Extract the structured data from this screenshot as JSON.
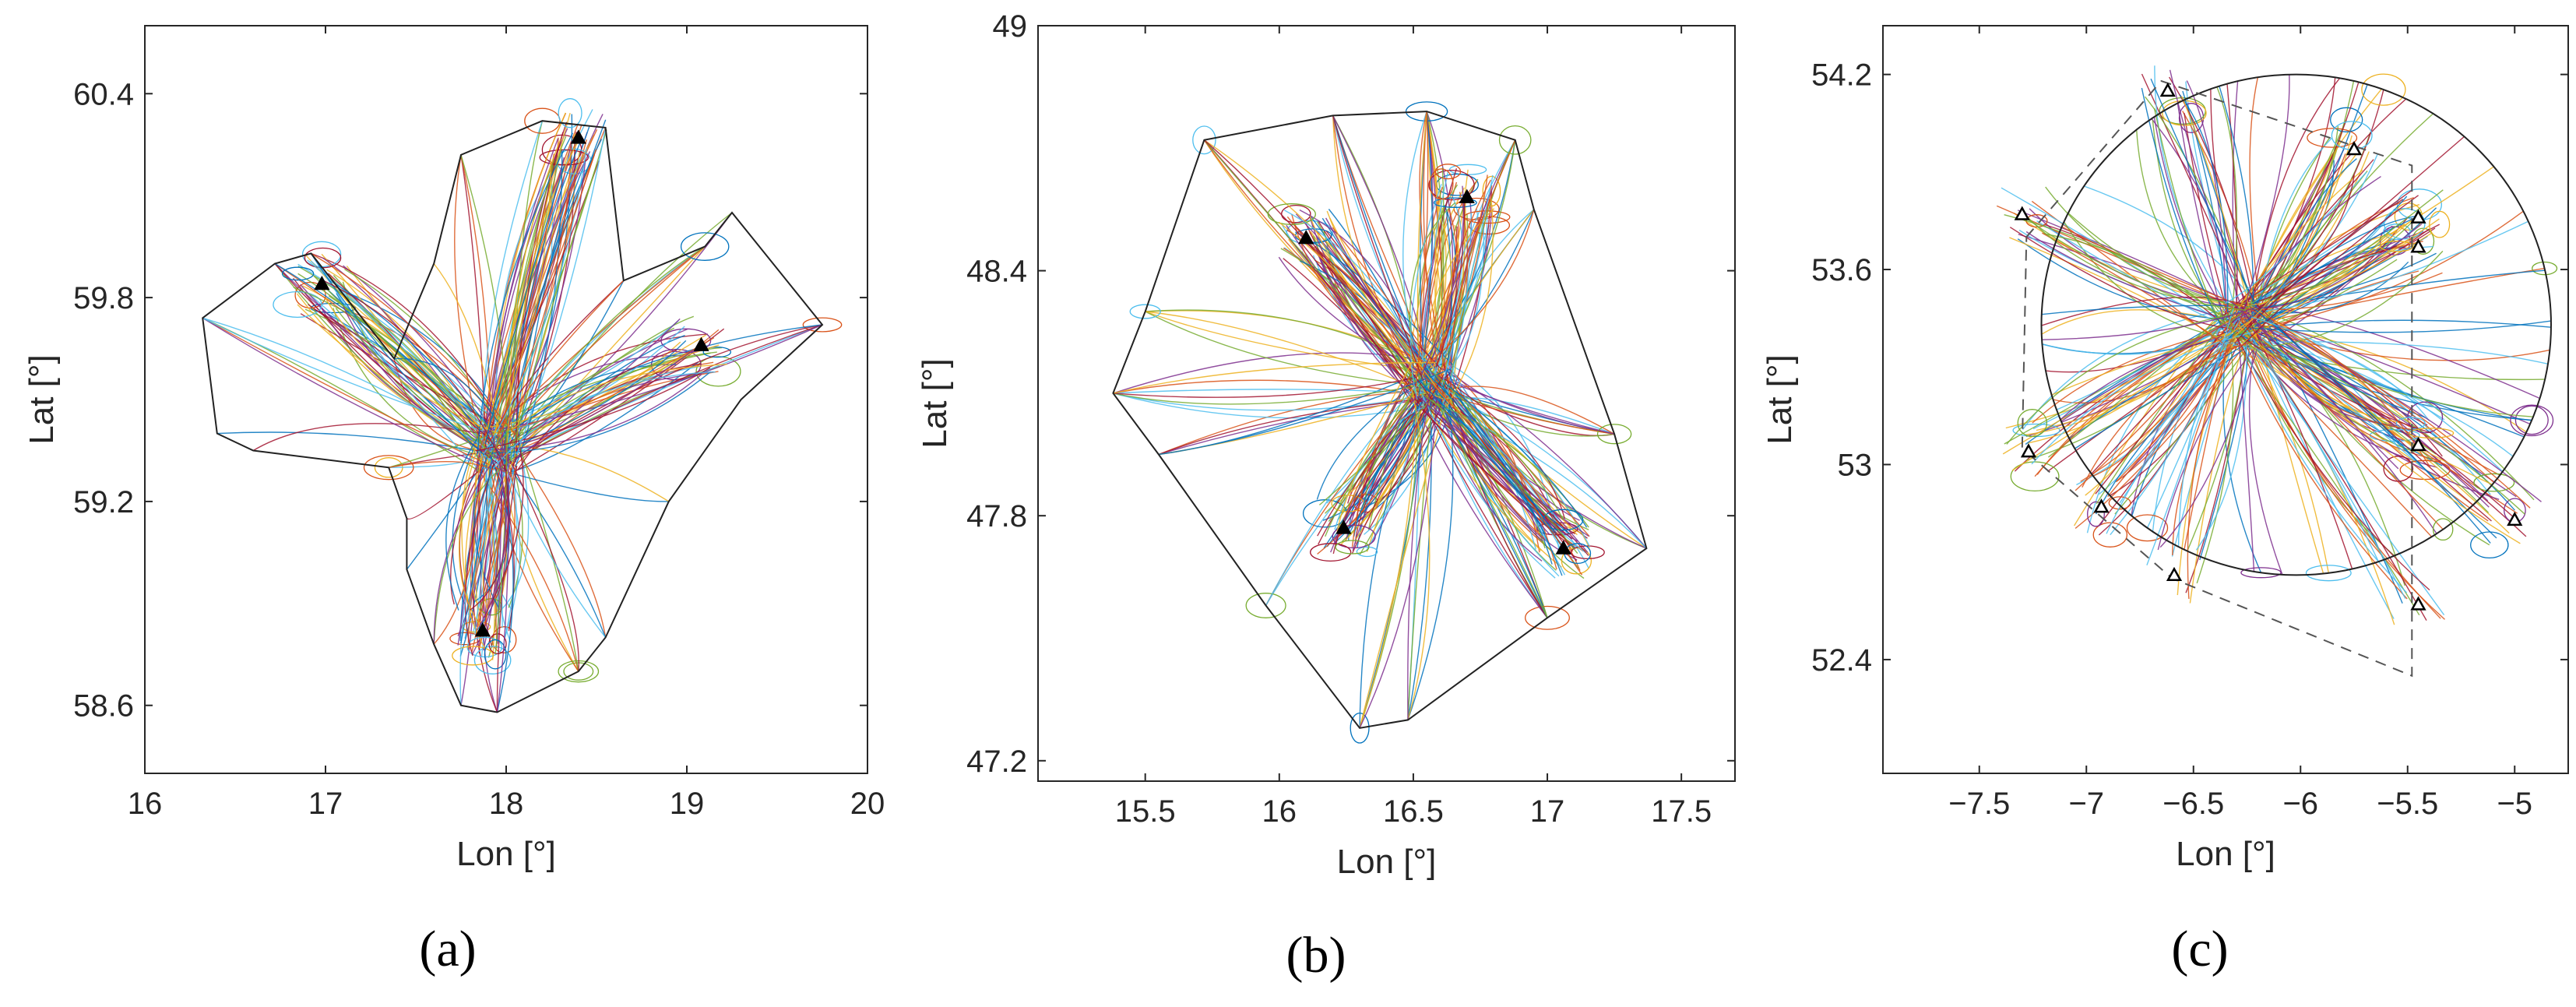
{
  "figure": {
    "description_label": "Aircraft trajectory plots for three terminal areas",
    "trajectory_colors": [
      "#0072BD",
      "#D95319",
      "#EDB120",
      "#7E2F8E",
      "#77AC30",
      "#4DBEEE",
      "#A2142F"
    ],
    "boundary_color": "#222222",
    "marker_color": "#000000"
  },
  "chart_data": [
    {
      "type": "line",
      "title": "",
      "caption": "(a)",
      "xlabel": "Lon [°]",
      "ylabel": "Lat [°]",
      "xlim": [
        16,
        20
      ],
      "ylim": [
        58.4,
        60.6
      ],
      "xticks": [
        16,
        17,
        18,
        19,
        20
      ],
      "yticks": [
        58.6,
        59.2,
        59.8,
        60.4
      ],
      "xtick_labels": [
        "16",
        "17",
        "18",
        "19",
        "20"
      ],
      "ytick_labels": [
        "58.6",
        "59.2",
        "59.8",
        "60.4"
      ],
      "center": [
        17.95,
        59.35
      ],
      "trajectory_count": 260,
      "entry_points": [
        {
          "lon": 16.98,
          "lat": 59.84
        },
        {
          "lon": 18.4,
          "lat": 60.27
        },
        {
          "lon": 19.08,
          "lat": 59.66
        },
        {
          "lon": 17.87,
          "lat": 58.82
        }
      ],
      "boundary": {
        "style": "solid",
        "points": [
          [
            16.32,
            59.74
          ],
          [
            16.72,
            59.9
          ],
          [
            16.92,
            59.93
          ],
          [
            17.38,
            59.62
          ],
          [
            17.6,
            59.9
          ],
          [
            17.75,
            60.22
          ],
          [
            18.2,
            60.32
          ],
          [
            18.55,
            60.3
          ],
          [
            18.65,
            59.85
          ],
          [
            19.1,
            59.95
          ],
          [
            19.25,
            60.05
          ],
          [
            19.75,
            59.72
          ],
          [
            19.3,
            59.5
          ],
          [
            18.9,
            59.2
          ],
          [
            18.55,
            58.8
          ],
          [
            18.4,
            58.7
          ],
          [
            17.95,
            58.58
          ],
          [
            17.75,
            58.6
          ],
          [
            17.6,
            58.78
          ],
          [
            17.45,
            59.0
          ],
          [
            17.45,
            59.15
          ],
          [
            17.35,
            59.3
          ],
          [
            16.6,
            59.35
          ],
          [
            16.4,
            59.4
          ]
        ]
      },
      "secondary_boundary": null
    },
    {
      "type": "line",
      "title": "",
      "caption": "(b)",
      "xlabel": "Lon [°]",
      "ylabel": "Lat [°]",
      "xlim": [
        15.1,
        17.7
      ],
      "ylim": [
        47.15,
        49.0
      ],
      "xticks": [
        15.5,
        16,
        16.5,
        17,
        17.5
      ],
      "yticks": [
        47.2,
        47.8,
        48.4,
        49
      ],
      "xtick_labels": [
        "15.5",
        "16",
        "16.5",
        "17",
        "17.5"
      ],
      "ytick_labels": [
        "47.2",
        "47.8",
        "48.4",
        "49"
      ],
      "center": [
        16.57,
        48.12
      ],
      "trajectory_count": 320,
      "entry_points": [
        {
          "lon": 16.1,
          "lat": 48.48
        },
        {
          "lon": 16.7,
          "lat": 48.58
        },
        {
          "lon": 16.24,
          "lat": 47.77
        },
        {
          "lon": 17.06,
          "lat": 47.72
        }
      ],
      "boundary": {
        "style": "solid",
        "points": [
          [
            15.38,
            48.1
          ],
          [
            15.5,
            48.3
          ],
          [
            15.72,
            48.72
          ],
          [
            16.2,
            48.78
          ],
          [
            16.55,
            48.79
          ],
          [
            16.88,
            48.72
          ],
          [
            16.95,
            48.55
          ],
          [
            17.25,
            48.0
          ],
          [
            17.37,
            47.72
          ],
          [
            17.0,
            47.55
          ],
          [
            16.48,
            47.3
          ],
          [
            16.3,
            47.28
          ],
          [
            15.95,
            47.58
          ],
          [
            15.55,
            47.95
          ]
        ]
      },
      "secondary_boundary": null
    },
    {
      "type": "line",
      "title": "",
      "caption": "(c)",
      "xlabel": "Lon [°]",
      "ylabel": "Lat [°]",
      "xlim": [
        -7.95,
        -4.75
      ],
      "ylim": [
        52.05,
        54.35
      ],
      "xticks": [
        -7.5,
        -7,
        -6.5,
        -6,
        -5.5,
        -5
      ],
      "yticks": [
        52.4,
        53,
        53.6,
        54.2
      ],
      "xtick_labels": [
        "−7.5",
        "−7",
        "−6.5",
        "−6",
        "−5.5",
        "−5"
      ],
      "ytick_labels": [
        "52.4",
        "53",
        "53.6",
        "54.2"
      ],
      "center": [
        -6.27,
        53.43
      ],
      "trajectory_count": 300,
      "entry_points": [
        {
          "lon": -6.62,
          "lat": 54.15
        },
        {
          "lon": -5.75,
          "lat": 53.97
        },
        {
          "lon": -7.3,
          "lat": 53.77
        },
        {
          "lon": -5.45,
          "lat": 53.76
        },
        {
          "lon": -5.45,
          "lat": 53.67
        },
        {
          "lon": -7.27,
          "lat": 53.04
        },
        {
          "lon": -5.45,
          "lat": 53.06
        },
        {
          "lon": -6.93,
          "lat": 52.87
        },
        {
          "lon": -6.59,
          "lat": 52.66
        },
        {
          "lon": -5.0,
          "lat": 52.83
        },
        {
          "lon": -5.45,
          "lat": 52.57
        }
      ],
      "boundary": {
        "style": "circle",
        "center": [
          -6.02,
          53.43
        ],
        "radius_lon": 1.19,
        "radius_lat": 0.77
      },
      "secondary_boundary": {
        "style": "dashed",
        "points": [
          [
            -7.28,
            53.7
          ],
          [
            -6.65,
            54.18
          ],
          [
            -5.48,
            53.92
          ],
          [
            -5.48,
            52.35
          ],
          [
            -6.6,
            52.65
          ],
          [
            -7.3,
            53.05
          ]
        ]
      }
    }
  ]
}
